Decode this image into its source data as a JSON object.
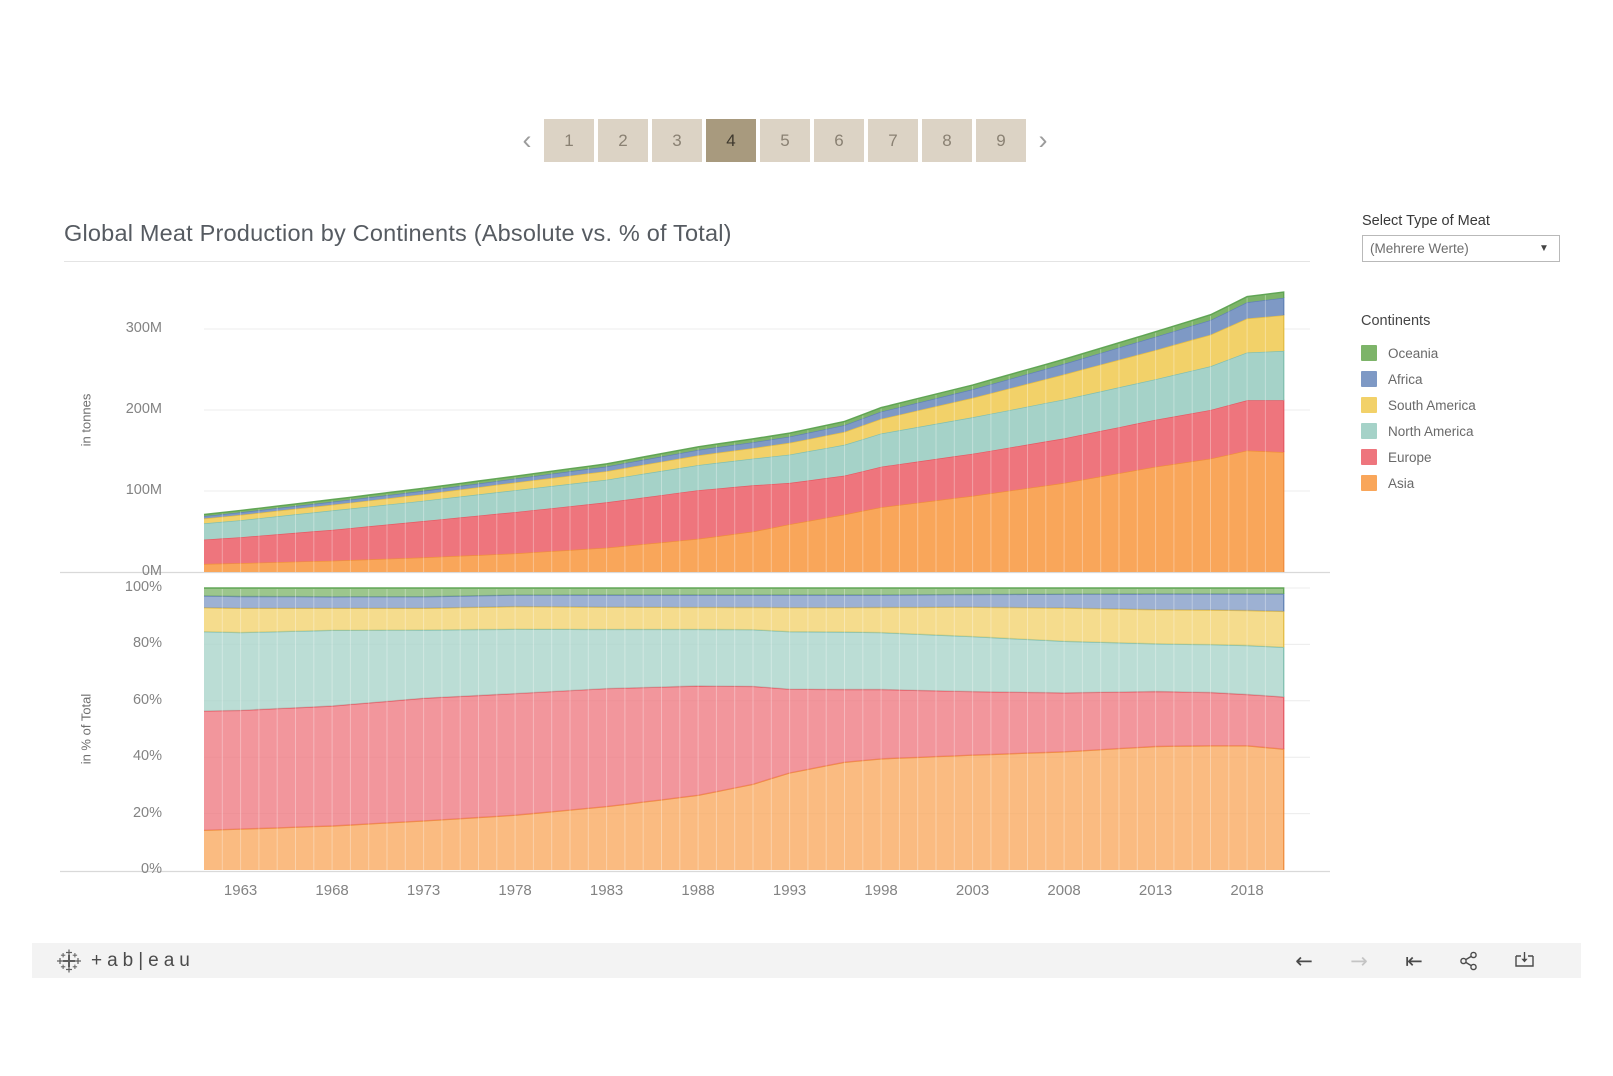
{
  "pagination": {
    "pages": [
      "1",
      "2",
      "3",
      "4",
      "5",
      "6",
      "7",
      "8",
      "9"
    ],
    "active_page": "4",
    "prev_icon": "‹",
    "next_icon": "›"
  },
  "header": {
    "title": "Global Meat Production by Continents (Absolute vs. % of Total)"
  },
  "filter": {
    "label": "Select Type of Meat",
    "value": "(Mehrere Werte)",
    "caret_icon": "▼"
  },
  "legend": {
    "title": "Continents",
    "items": [
      {
        "label": "Oceania",
        "color": "#7db469"
      },
      {
        "label": "Africa",
        "color": "#7e99c5"
      },
      {
        "label": "South America",
        "color": "#f2d169"
      },
      {
        "label": "North America",
        "color": "#a5d2c8"
      },
      {
        "label": "Europe",
        "color": "#ee757d"
      },
      {
        "label": "Asia",
        "color": "#f9a65a"
      }
    ]
  },
  "chart_data": [
    {
      "type": "area",
      "stacked": true,
      "pane": "top",
      "ylabel": "in tonnes",
      "unit": "million tonnes",
      "ylim": [
        0,
        350
      ],
      "yticks": [
        {
          "label": "0M",
          "value": 0
        },
        {
          "label": "100M",
          "value": 100
        },
        {
          "label": "200M",
          "value": 200
        },
        {
          "label": "300M",
          "value": 300
        }
      ],
      "xticks": [
        1963,
        1968,
        1973,
        1978,
        1983,
        1988,
        1993,
        1998,
        2003,
        2008,
        2013,
        2018
      ],
      "x_range": [
        1961,
        2020
      ],
      "x_anchor_years": [
        1961,
        1963,
        1968,
        1973,
        1978,
        1983,
        1988,
        1991,
        1993,
        1996,
        1998,
        2003,
        2008,
        2013,
        2016,
        2018,
        2020
      ],
      "grid": true,
      "legend_position": "right",
      "series": [
        {
          "name": "Asia",
          "fill": "#f9a65a",
          "stroke": "#ee8836",
          "values": [
            10,
            11,
            14,
            18,
            23,
            30,
            41,
            50,
            59,
            71,
            80,
            94,
            110,
            130,
            140,
            150,
            148
          ]
        },
        {
          "name": "Europe",
          "fill": "#ee757d",
          "stroke": "#e4555f",
          "values": [
            30,
            32,
            38,
            45,
            51,
            56,
            60,
            57,
            51,
            48,
            50,
            52,
            55,
            58,
            60,
            62,
            64
          ]
        },
        {
          "name": "North America",
          "fill": "#a5d2c8",
          "stroke": "#7cbcac",
          "values": [
            20,
            21,
            24,
            25,
            27,
            28,
            31,
            33,
            35,
            38,
            41,
            45,
            48,
            50,
            54,
            59,
            61
          ]
        },
        {
          "name": "South America",
          "fill": "#f2d169",
          "stroke": "#e2b93e",
          "values": [
            6,
            6.5,
            7,
            8,
            9.5,
            10.5,
            12,
            13,
            14.5,
            16,
            18,
            24,
            31,
            36,
            39,
            42,
            44
          ]
        },
        {
          "name": "Africa",
          "fill": "#7e99c5",
          "stroke": "#5d7eb1",
          "values": [
            3,
            3.2,
            3.7,
            4.2,
            4.8,
            5.8,
            6.8,
            7.3,
            7.7,
            8.3,
            9,
            10.5,
            13,
            16.5,
            18,
            20,
            21.5
          ]
        },
        {
          "name": "Oceania",
          "fill": "#7db469",
          "stroke": "#57a04b",
          "values": [
            2,
            2.3,
            2.8,
            3.2,
            3,
            3.3,
            3.8,
            4.1,
            4.3,
            4.6,
            5,
            5.4,
            5.7,
            6.2,
            6.6,
            7,
            7.2
          ]
        }
      ]
    },
    {
      "type": "area",
      "stacked": true,
      "normalized": true,
      "pane": "bottom",
      "ylabel": "in % of Total",
      "unit": "%",
      "ylim": [
        0,
        100
      ],
      "yticks": [
        {
          "label": "0%",
          "value": 0
        },
        {
          "label": "20%",
          "value": 20
        },
        {
          "label": "40%",
          "value": 40
        },
        {
          "label": "60%",
          "value": 60
        },
        {
          "label": "80%",
          "value": 80
        },
        {
          "label": "100%",
          "value": 100
        }
      ],
      "xticks": [
        1963,
        1968,
        1973,
        1978,
        1983,
        1988,
        1993,
        1998,
        2003,
        2008,
        2013,
        2018
      ],
      "x_range": [
        1961,
        2020
      ],
      "x_anchor_years": [
        1961,
        1963,
        1968,
        1973,
        1978,
        1983,
        1988,
        1991,
        1993,
        1996,
        1998,
        2003,
        2008,
        2013,
        2016,
        2018,
        2020
      ],
      "grid": true,
      "series": [
        {
          "name": "Asia",
          "fill": "#f9a65a",
          "stroke": "#ee8836",
          "values": [
            14.1,
            14.5,
            15.6,
            17.4,
            19.4,
            22.5,
            26.5,
            30.4,
            34.4,
            38.2,
            39.4,
            40.7,
            41.9,
            43.8,
            44.1,
            44.1,
            42.8
          ]
        },
        {
          "name": "Europe",
          "fill": "#ee757d",
          "stroke": "#e4555f",
          "values": [
            42.3,
            42.1,
            42.5,
            43.5,
            43.1,
            41.9,
            38.8,
            34.7,
            29.7,
            25.8,
            24.6,
            22.5,
            20.9,
            19.5,
            18.9,
            18.2,
            18.5
          ]
        },
        {
          "name": "North America",
          "fill": "#a5d2c8",
          "stroke": "#7cbcac",
          "values": [
            28.2,
            27.6,
            26.8,
            24.2,
            22.8,
            21.0,
            20.1,
            20.1,
            20.4,
            20.4,
            20.2,
            19.5,
            18.3,
            16.9,
            17.0,
            17.4,
            17.6
          ]
        },
        {
          "name": "South America",
          "fill": "#f2d169",
          "stroke": "#e2b93e",
          "values": [
            8.5,
            8.6,
            7.8,
            7.7,
            8.0,
            7.9,
            7.8,
            7.9,
            8.5,
            8.6,
            8.9,
            10.4,
            11.8,
            12.1,
            12.3,
            12.4,
            12.7
          ]
        },
        {
          "name": "Africa",
          "fill": "#7e99c5",
          "stroke": "#5d7eb1",
          "values": [
            4.2,
            4.2,
            4.1,
            4.1,
            4.1,
            4.3,
            4.4,
            4.4,
            4.5,
            4.5,
            4.4,
            4.5,
            4.9,
            5.6,
            5.7,
            5.9,
            6.2
          ]
        },
        {
          "name": "Oceania",
          "fill": "#7db469",
          "stroke": "#57a04b",
          "values": [
            2.8,
            3.0,
            3.1,
            3.1,
            2.5,
            2.5,
            2.5,
            2.5,
            2.5,
            2.5,
            2.5,
            2.3,
            2.2,
            2.1,
            2.1,
            2.1,
            2.1
          ]
        }
      ]
    }
  ],
  "toolbar": {
    "logo_text": "+ab|eau",
    "icons": [
      {
        "name": "undo",
        "glyph": "←",
        "enabled": true
      },
      {
        "name": "redo",
        "glyph": "→",
        "enabled": false
      },
      {
        "name": "reset",
        "glyph": "⇤",
        "enabled": true
      },
      {
        "name": "share",
        "glyph": "share",
        "enabled": true
      },
      {
        "name": "download",
        "glyph": "download",
        "enabled": true
      }
    ]
  }
}
